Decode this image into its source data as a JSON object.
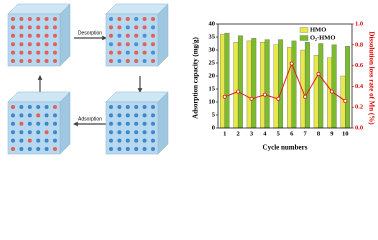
{
  "diagram": {
    "labels": [
      "Desorption",
      "Adsorption"
    ]
  },
  "chart_data": {
    "type": "bar",
    "ylabel": "Adsorption capacity (mg/g)",
    "y2label": "Dissolution loss rate of Mn (%)",
    "xlabel": "Cycle numbers",
    "categories": [
      "1",
      "2",
      "3",
      "4",
      "5",
      "6",
      "7",
      "8",
      "9",
      "10"
    ],
    "series": [
      {
        "name": "HMO",
        "color": "#e8e84a",
        "values": [
          36,
          33,
          33.5,
          33,
          32,
          31,
          30,
          28,
          27,
          20
        ]
      },
      {
        "name": "O₂-HMO",
        "color": "#7dbb2e",
        "values": [
          36.5,
          35.5,
          34.5,
          34,
          34,
          33.5,
          33,
          32.5,
          32,
          31.5
        ]
      }
    ],
    "line": {
      "color": "#e02020",
      "axis": "y2",
      "values": [
        0.3,
        0.35,
        0.28,
        0.32,
        0.28,
        0.62,
        0.3,
        0.52,
        0.35,
        0.26
      ]
    },
    "ylim": [
      0,
      40
    ],
    "yticks": [
      0,
      5,
      10,
      15,
      20,
      25,
      30,
      35,
      40
    ],
    "y2lim": [
      0,
      1
    ],
    "y2ticks": [
      {
        "value": 0,
        "label": "0.0"
      },
      {
        "value": 0.2,
        "label": "0.2"
      },
      {
        "value": 0.4,
        "label": "0.4"
      },
      {
        "value": 0.6,
        "label": "0.6"
      },
      {
        "value": 0.8,
        "label": "0.8"
      },
      {
        "value": 1,
        "label": "1.0"
      }
    ],
    "legend": "top-right"
  }
}
